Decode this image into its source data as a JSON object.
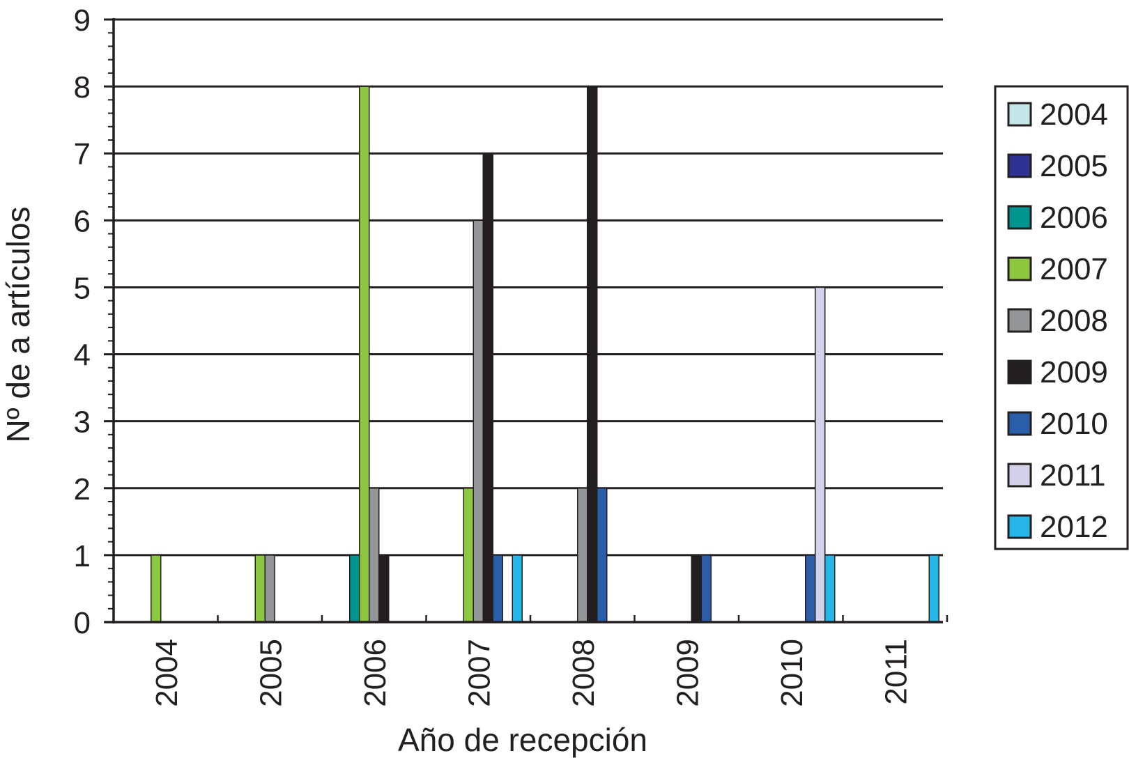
{
  "chart_data": {
    "type": "bar",
    "categories": [
      "2004",
      "2005",
      "2006",
      "2007",
      "2008",
      "2009",
      "2010",
      "2011"
    ],
    "xlabel": "Año de recepción",
    "ylabel": "Nº de a artículos",
    "ylim": [
      0,
      9
    ],
    "yticks": [
      "0",
      "1",
      "2",
      "3",
      "4",
      "5",
      "6",
      "7",
      "8",
      "9"
    ],
    "grid": true,
    "legend_position": "right",
    "series": [
      {
        "name": "2004",
        "color": "#c4e6e8",
        "values": [
          0,
          0,
          0,
          0,
          0,
          0,
          0,
          0
        ]
      },
      {
        "name": "2005",
        "color": "#2e3192",
        "values": [
          0,
          0,
          0,
          0,
          0,
          0,
          0,
          0
        ]
      },
      {
        "name": "2006",
        "color": "#00958f",
        "values": [
          0,
          0,
          1,
          0,
          0,
          0,
          0,
          0
        ]
      },
      {
        "name": "2007",
        "color": "#8dc63f",
        "values": [
          1,
          1,
          8,
          2,
          0,
          0,
          0,
          0
        ]
      },
      {
        "name": "2008",
        "color": "#939598",
        "values": [
          0,
          1,
          2,
          6,
          2,
          0,
          0,
          0
        ]
      },
      {
        "name": "2009",
        "color": "#231f20",
        "values": [
          0,
          0,
          1,
          7,
          8,
          1,
          0,
          0
        ]
      },
      {
        "name": "2010",
        "color": "#2b5ea8",
        "values": [
          0,
          0,
          0,
          1,
          2,
          1,
          1,
          0
        ]
      },
      {
        "name": "2011",
        "color": "#d2d3ea",
        "values": [
          0,
          0,
          0,
          0,
          0,
          0,
          5,
          0
        ]
      },
      {
        "name": "2012",
        "color": "#27b6e8",
        "values": [
          0,
          0,
          0,
          1,
          0,
          0,
          1,
          1
        ]
      }
    ]
  }
}
